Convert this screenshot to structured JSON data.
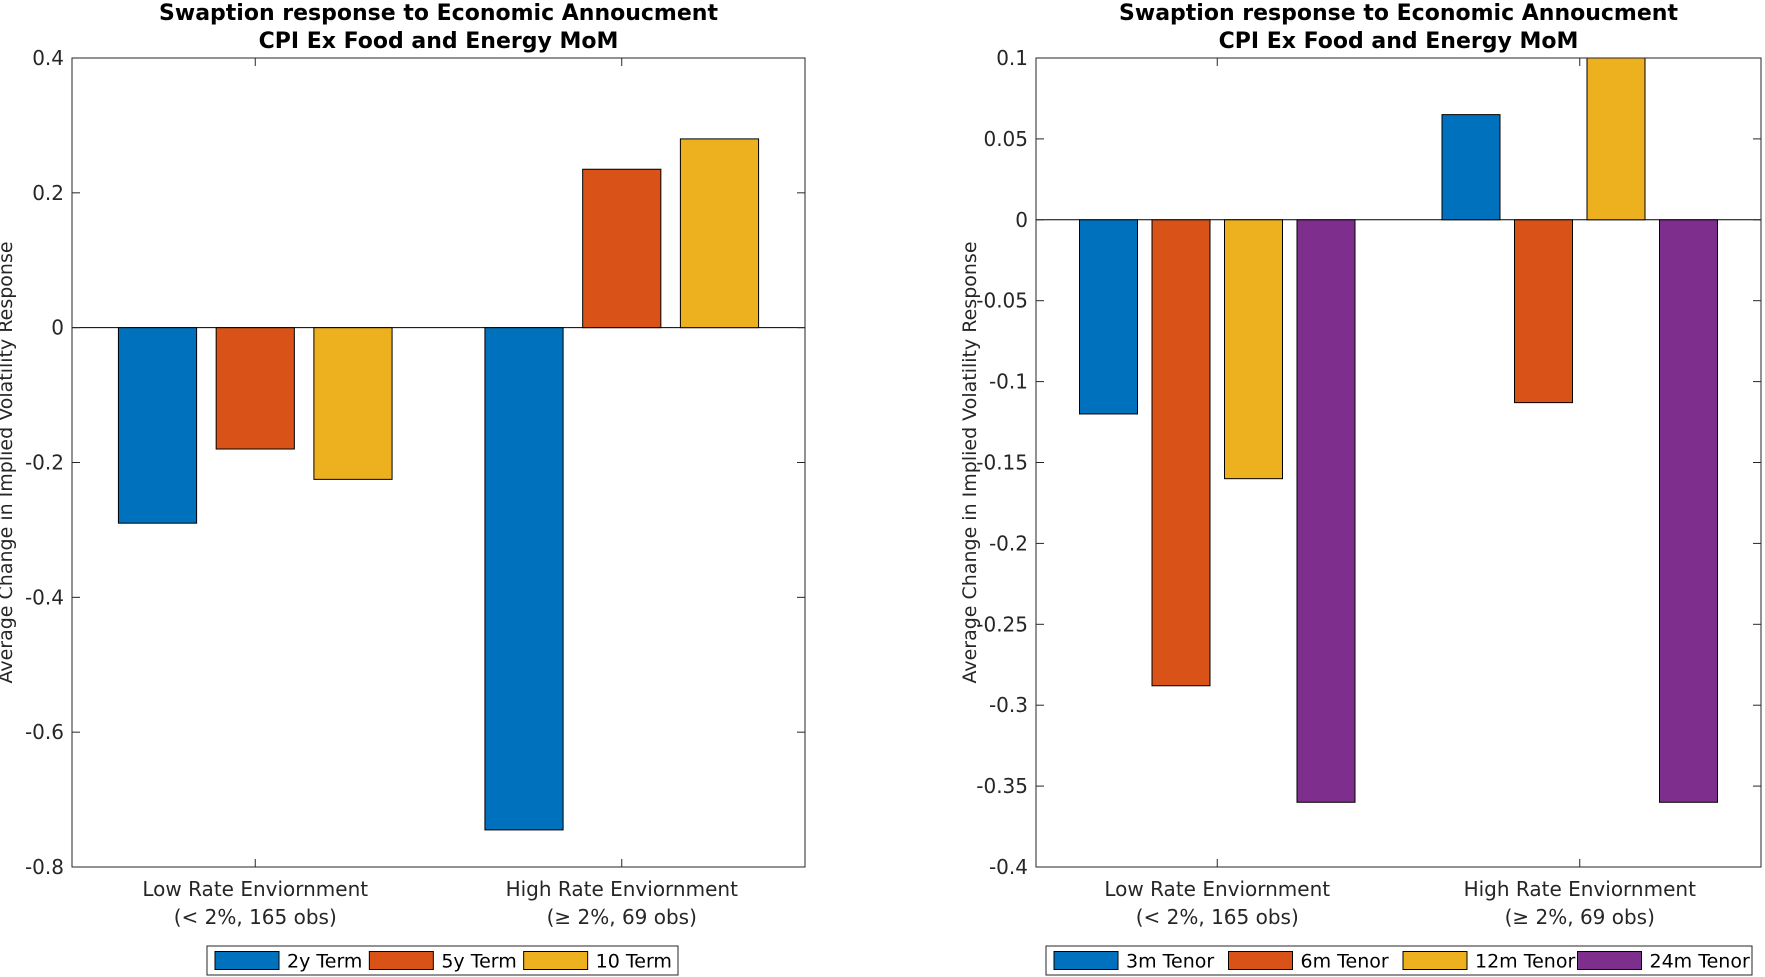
{
  "chart_data": [
    {
      "type": "bar",
      "title": [
        "Swaption response to Economic Annoucment",
        "CPI Ex Food and Energy MoM"
      ],
      "xlabel": "",
      "ylabel": "Average Change in Implied Volatility Response",
      "ylim": [
        -0.8,
        0.4
      ],
      "yticks": [
        -0.8,
        -0.6,
        -0.4,
        -0.2,
        0,
        0.2,
        0.4
      ],
      "ytick_labels": [
        "-0.8",
        "-0.6",
        "-0.4",
        "-0.2",
        "0",
        "0.2",
        "0.4"
      ],
      "categories": [
        [
          "Low Rate Enviornment",
          "(< 2%, 165 obs)"
        ],
        [
          "High Rate Enviornment",
          "(≥ 2%, 69 obs)"
        ]
      ],
      "series": [
        {
          "name": "2y Term",
          "color": "#0072BD",
          "values": [
            -0.29,
            -0.745
          ]
        },
        {
          "name": "5y Term",
          "color": "#D95319",
          "values": [
            -0.18,
            0.235
          ]
        },
        {
          "name": "10 Term",
          "color": "#EDB120",
          "values": [
            -0.225,
            0.28
          ]
        }
      ],
      "grid": false,
      "legend": "bottom"
    },
    {
      "type": "bar",
      "title": [
        "Swaption response to Economic Annoucment",
        "CPI Ex Food and Energy MoM"
      ],
      "xlabel": "",
      "ylabel": "Average Change in Implied Volatility Response",
      "ylim": [
        -0.4,
        0.1
      ],
      "yticks": [
        -0.4,
        -0.35,
        -0.3,
        -0.25,
        -0.2,
        -0.15,
        -0.1,
        -0.05,
        0,
        0.05,
        0.1
      ],
      "ytick_labels": [
        "-0.4",
        "-0.35",
        "-0.3",
        "-0.25",
        "-0.2",
        "-0.15",
        "-0.1",
        "-0.05",
        "0",
        "0.05",
        "0.1"
      ],
      "categories": [
        [
          "Low Rate Enviornment",
          "(< 2%, 165 obs)"
        ],
        [
          "High Rate Enviornment",
          "(≥ 2%, 69 obs)"
        ]
      ],
      "series": [
        {
          "name": "3m Tenor",
          "color": "#0072BD",
          "values": [
            -0.12,
            0.065
          ]
        },
        {
          "name": "6m Tenor",
          "color": "#D95319",
          "values": [
            -0.288,
            -0.113
          ]
        },
        {
          "name": "12m Tenor",
          "color": "#EDB120",
          "values": [
            -0.16,
            0.1
          ]
        },
        {
          "name": "24m Tenor",
          "color": "#7E2F8E",
          "values": [
            -0.36,
            -0.36
          ]
        }
      ],
      "grid": false,
      "legend": "bottom"
    }
  ]
}
